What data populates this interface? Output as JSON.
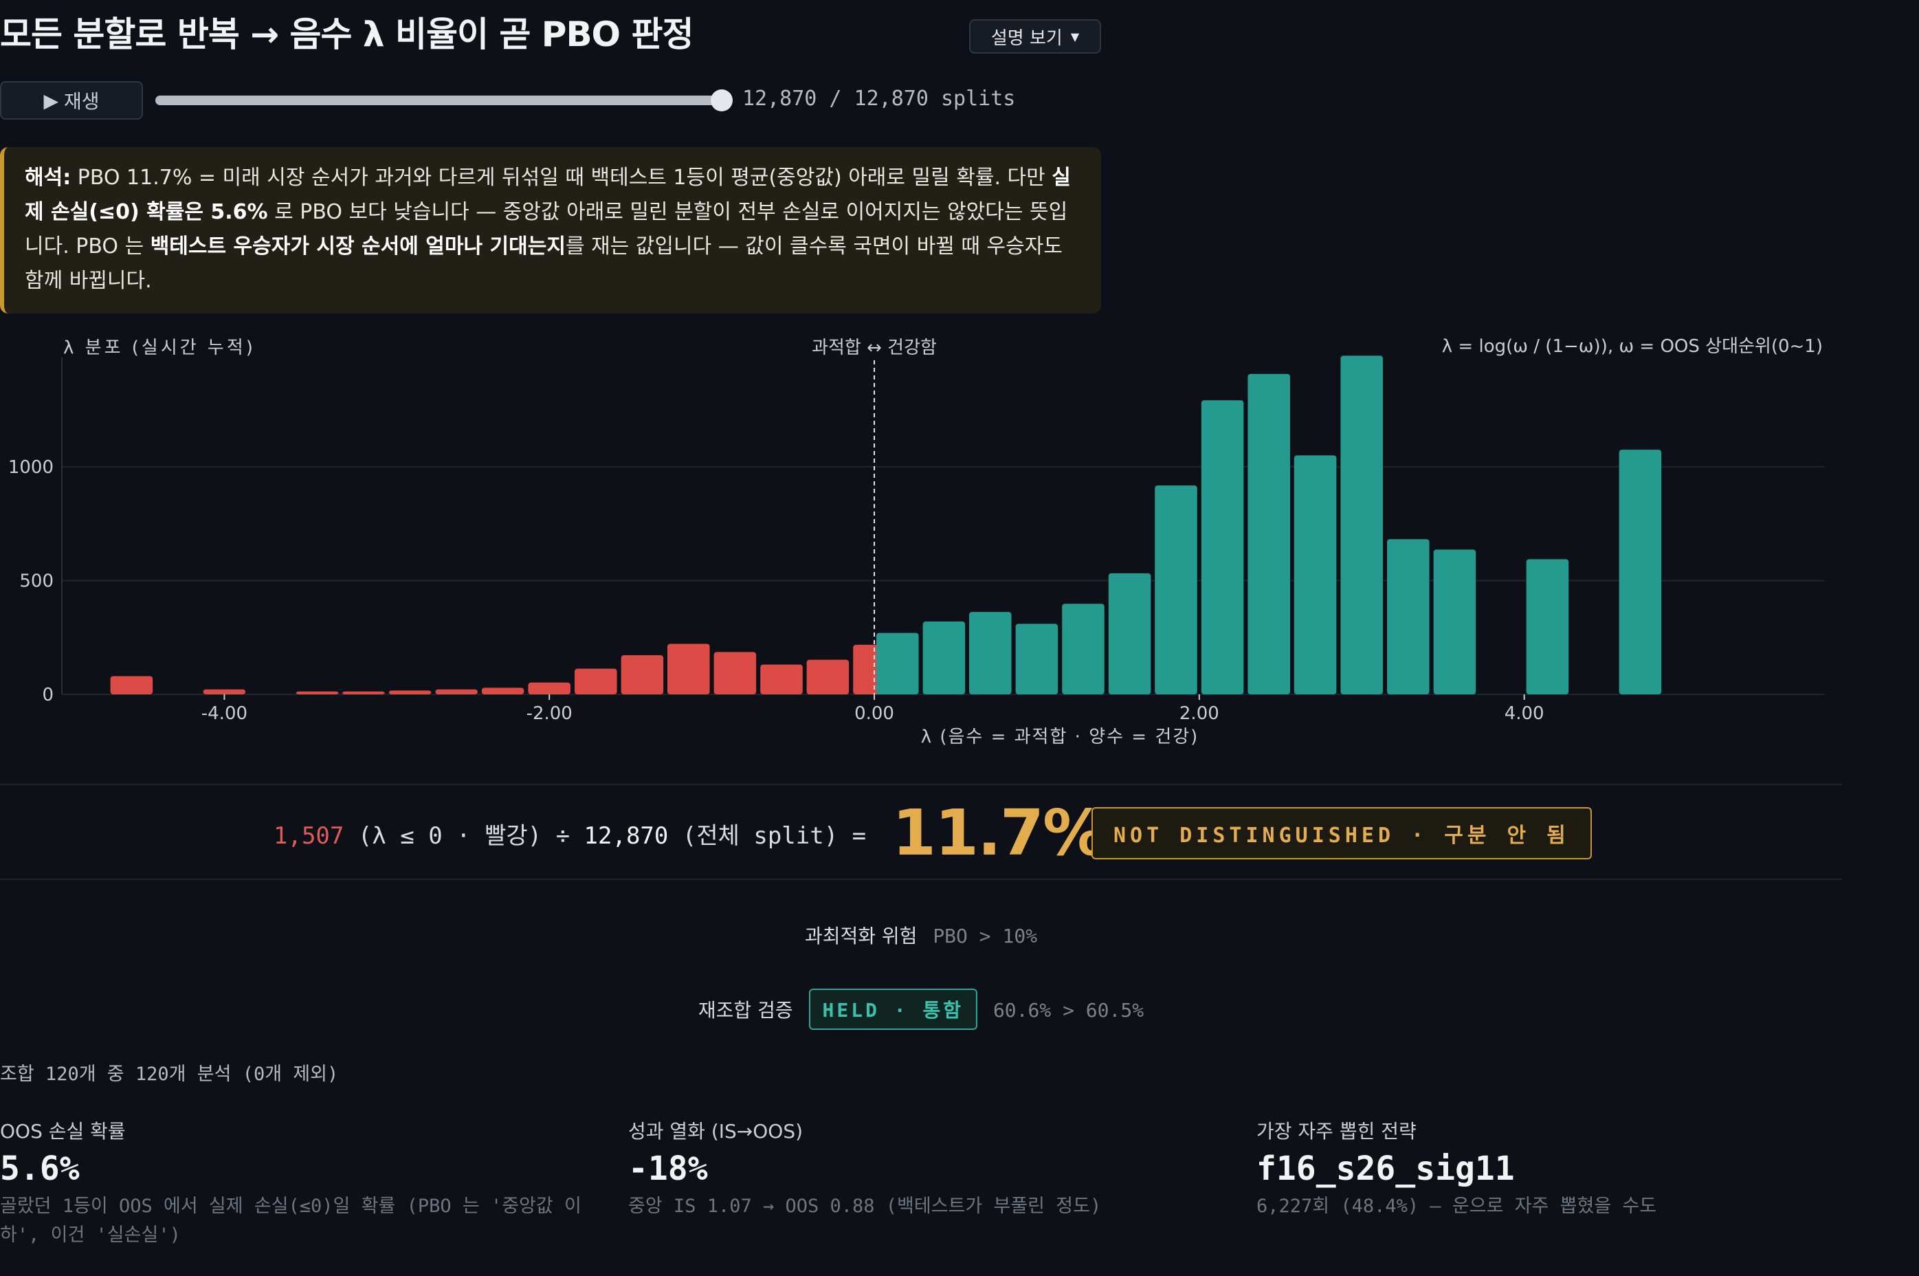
{
  "header": {
    "title": "모든 분할로 반복 → 음수 λ 비율이 곧 PBO 판정",
    "explain_button": "설명 보기"
  },
  "playback": {
    "play_label": "재생",
    "progress": 1.0,
    "progress_text": "12,870 / 12,870 splits"
  },
  "interpretation": {
    "lead": "해석:",
    "t1": " PBO 11.7% = 미래 시장 순서가 과거와 다르게 뒤섞일 때 백테스트 1등이 평균(중앙값) 아래로 밀릴 확률. 다만 ",
    "b1": "실제 손실(≤0) 확률은 5.6%",
    "t2": " 로 PBO 보다 낮습니다 — 중앙값 아래로 밀린 분할이 전부 손실로 이어지지는 않았다는 뜻입니다. PBO 는 ",
    "b2": "백테스트 우승자가 시장 순서에 얼마나 기대는지",
    "t3": "를 재는 값입니다 — 값이 클수록 국면이 바뀔 때 우승자도 함께 바뀝니다."
  },
  "chart_data": {
    "type": "bar",
    "title": "λ 분포 (실시간 누적)",
    "divider_label": "과적합 ↔ 건강함",
    "formula": "λ = log(ω / (1−ω)), ω = OOS 상대순위(0~1)",
    "xlabel": "λ (음수 = 과적합 · 양수 = 건강)",
    "ylabel": "",
    "xlim": [
      -5.0,
      5.85
    ],
    "ylim": [
      0,
      1480
    ],
    "x_ticks": [
      -4,
      -2,
      0,
      2,
      4
    ],
    "x_tick_labels": [
      "-4.00",
      "-2.00",
      "0.00",
      "2.00",
      "4.00"
    ],
    "y_ticks": [
      0,
      500,
      1000
    ],
    "y_tick_labels": [
      "0",
      "500",
      "1000"
    ],
    "bin_width": 0.2857,
    "bins": [
      {
        "x0": -4.714,
        "value": 80
      },
      {
        "x0": -4.143,
        "value": 22
      },
      {
        "x0": -3.571,
        "value": 13
      },
      {
        "x0": -3.286,
        "value": 13
      },
      {
        "x0": -3.0,
        "value": 17
      },
      {
        "x0": -2.714,
        "value": 22
      },
      {
        "x0": -2.429,
        "value": 29
      },
      {
        "x0": -2.143,
        "value": 52
      },
      {
        "x0": -1.857,
        "value": 113
      },
      {
        "x0": -1.571,
        "value": 172
      },
      {
        "x0": -1.286,
        "value": 222
      },
      {
        "x0": -1.0,
        "value": 186
      },
      {
        "x0": -0.714,
        "value": 131
      },
      {
        "x0": -0.429,
        "value": 152
      },
      {
        "x0": -0.143,
        "value": 218
      },
      {
        "x0": 0.0,
        "value": 270
      },
      {
        "x0": 0.286,
        "value": 320
      },
      {
        "x0": 0.571,
        "value": 362
      },
      {
        "x0": 0.857,
        "value": 310
      },
      {
        "x0": 1.143,
        "value": 398
      },
      {
        "x0": 1.429,
        "value": 532
      },
      {
        "x0": 1.714,
        "value": 918
      },
      {
        "x0": 2.0,
        "value": 1292
      },
      {
        "x0": 2.286,
        "value": 1408
      },
      {
        "x0": 2.571,
        "value": 1050
      },
      {
        "x0": 2.857,
        "value": 1488
      },
      {
        "x0": 3.143,
        "value": 682
      },
      {
        "x0": 3.429,
        "value": 636
      },
      {
        "x0": 4.0,
        "value": 594
      },
      {
        "x0": 4.571,
        "value": 1075
      }
    ],
    "colors": {
      "negative": "#dd4b47",
      "positive": "#259a8e",
      "grid": "#1f252e",
      "divider": "#e8eaee"
    }
  },
  "result": {
    "neg_count": "1,507",
    "neg_desc": "(λ ≤ 0 · 빨강) ÷",
    "total": "12,870",
    "total_desc": "(전체 split) =",
    "pbo": "11.7%",
    "verdict": "NOT DISTINGUISHED · 구분 안 됨"
  },
  "risk": {
    "label": "과최적화 위험",
    "rule": "PBO > 10%"
  },
  "recombination": {
    "label": "재조합 검증",
    "badge": "HELD · 통함",
    "compare": "60.6% > 60.5%"
  },
  "combo_note": "조합 120개 중 120개 분석 (0개 제외)",
  "stats": [
    {
      "label": "OOS 손실 확률",
      "value": "5.6%",
      "desc": "골랐던 1등이 OOS 에서 실제 손실(≤0)일 확률 (PBO 는 '중앙값 이하', 이건 '실손실')"
    },
    {
      "label": "성과 열화 (IS→OOS)",
      "value": "-18%",
      "desc": "중앙 IS 1.07 → OOS 0.88 (백테스트가 부풀린 정도)"
    },
    {
      "label": "가장 자주 뽑힌 전략",
      "value": "f16_s26_sig11",
      "desc": "6,227회 (48.4%) — 운으로 자주 뽑혔을 수도"
    }
  ]
}
